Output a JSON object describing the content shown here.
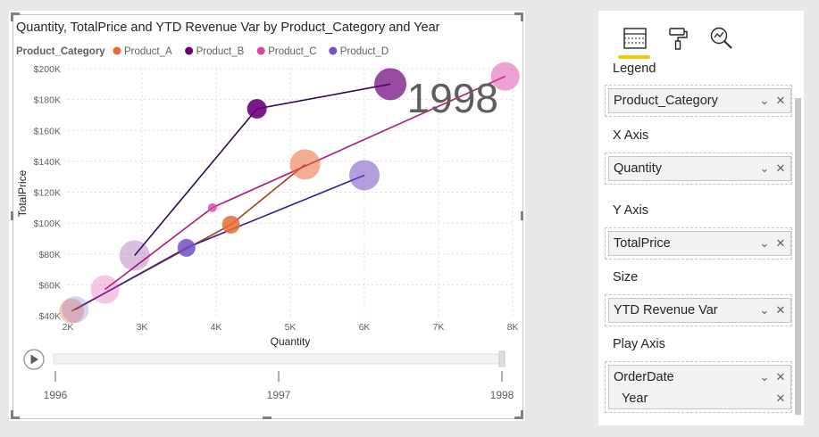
{
  "chart_data": {
    "type": "scatter",
    "title": "Quantity, TotalPrice and YTD Revenue Var by Product_Category and Year",
    "xlabel": "Quantity",
    "ylabel": "TotalPrice",
    "xlim": [
      2000,
      8000
    ],
    "ylim": [
      40000,
      200000
    ],
    "x_ticks": [
      2000,
      3000,
      4000,
      5000,
      6000,
      7000,
      8000
    ],
    "x_tick_labels": [
      "2K",
      "3K",
      "4K",
      "5K",
      "6K",
      "7K",
      "8K"
    ],
    "y_ticks": [
      40000,
      60000,
      80000,
      100000,
      120000,
      140000,
      160000,
      180000,
      200000
    ],
    "y_tick_labels": [
      "$40K",
      "$60K",
      "$80K",
      "$100K",
      "$120K",
      "$140K",
      "$160K",
      "$180K",
      "$200K"
    ],
    "grid": true,
    "legend_title": "Product_Category",
    "legend_position": "top-left",
    "play_axis_value": "1998",
    "play_axis_labels": [
      "1996",
      "1997",
      "1998"
    ],
    "series": [
      {
        "name": "Product_A",
        "color": "#e66c37",
        "trail_color": "#a0410f",
        "points": [
          {
            "year": "1996",
            "x": 2050,
            "y": 43000,
            "size": 14,
            "alpha": 0.35
          },
          {
            "year": "1997",
            "x": 4200,
            "y": 99000,
            "size": 10,
            "alpha": 0.85
          },
          {
            "year": "1998",
            "x": 5200,
            "y": 138000,
            "size": 17,
            "alpha": 0.55
          }
        ]
      },
      {
        "name": "Product_B",
        "color": "#6b007b",
        "trail_color": "#2e0a4f",
        "points": [
          {
            "year": "1996",
            "x": 2900,
            "y": 79000,
            "size": 17,
            "alpha": 0.25
          },
          {
            "year": "1997",
            "x": 4550,
            "y": 174000,
            "size": 11,
            "alpha": 0.9
          },
          {
            "year": "1998",
            "x": 6350,
            "y": 190000,
            "size": 18,
            "alpha": 0.7
          }
        ]
      },
      {
        "name": "Product_C",
        "color": "#e044a7",
        "trail_color": "#b0187a",
        "points": [
          {
            "year": "1996",
            "x": 2500,
            "y": 57000,
            "size": 16,
            "alpha": 0.3
          },
          {
            "year": "1997",
            "x": 3950,
            "y": 110000,
            "size": 5,
            "alpha": 0.8
          },
          {
            "year": "1998",
            "x": 7900,
            "y": 195000,
            "size": 16,
            "alpha": 0.5
          }
        ]
      },
      {
        "name": "Product_D",
        "color": "#744ec2",
        "trail_color": "#3a1c8c",
        "points": [
          {
            "year": "1996",
            "x": 2100,
            "y": 44000,
            "size": 15,
            "alpha": 0.25
          },
          {
            "year": "1997",
            "x": 3600,
            "y": 84000,
            "size": 10,
            "alpha": 0.85
          },
          {
            "year": "1998",
            "x": 6000,
            "y": 131000,
            "size": 17,
            "alpha": 0.55
          }
        ]
      }
    ]
  },
  "pane": {
    "sections": [
      {
        "title": "Legend",
        "fields": [
          "Product_Category"
        ]
      },
      {
        "title": "X Axis",
        "fields": [
          "Quantity"
        ]
      },
      {
        "title": "Y Axis",
        "fields": [
          "TotalPrice"
        ]
      },
      {
        "title": "Size",
        "fields": [
          "YTD Revenue Var"
        ]
      },
      {
        "title": "Play Axis",
        "fields": [
          "OrderDate"
        ],
        "subfields": [
          "Year"
        ]
      }
    ],
    "icons": [
      "fields-icon",
      "format-paintroller-icon",
      "analytics-magnifier-icon"
    ],
    "accent": "#f2c811"
  }
}
